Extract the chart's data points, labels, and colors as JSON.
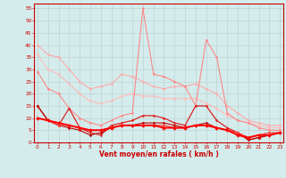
{
  "x": [
    0,
    1,
    2,
    3,
    4,
    5,
    6,
    7,
    8,
    9,
    10,
    11,
    12,
    13,
    14,
    15,
    16,
    17,
    18,
    19,
    20,
    21,
    22,
    23
  ],
  "series": [
    {
      "name": "line1_lightest",
      "color": "#ffaaaa",
      "linewidth": 0.8,
      "marker": "D",
      "markersize": 1.5,
      "values": [
        40,
        36,
        35,
        30,
        25,
        22,
        23,
        24,
        28,
        27,
        25,
        23,
        22,
        23,
        23,
        24,
        22,
        20,
        15,
        12,
        9,
        8,
        7,
        7
      ]
    },
    {
      "name": "line2_light",
      "color": "#ffbbbb",
      "linewidth": 0.8,
      "marker": "D",
      "markersize": 1.5,
      "values": [
        36,
        30,
        28,
        24,
        20,
        17,
        16,
        17,
        19,
        20,
        19,
        19,
        18,
        18,
        18,
        18,
        16,
        14,
        11,
        9,
        8,
        7,
        6,
        6
      ]
    },
    {
      "name": "line3_pink",
      "color": "#ff8888",
      "linewidth": 0.8,
      "marker": "D",
      "markersize": 1.5,
      "values": [
        29,
        22,
        20,
        14,
        10,
        8,
        7,
        9,
        11,
        12,
        55,
        28,
        27,
        25,
        23,
        15,
        42,
        35,
        12,
        9,
        8,
        6,
        5,
        5
      ]
    },
    {
      "name": "line4_red",
      "color": "#dd2222",
      "linewidth": 0.9,
      "marker": "D",
      "markersize": 1.5,
      "values": [
        15,
        9,
        7,
        14,
        6,
        4,
        3,
        7,
        8,
        9,
        11,
        11,
        10,
        8,
        7,
        15,
        15,
        9,
        6,
        4,
        1,
        2,
        3,
        4
      ]
    },
    {
      "name": "line5_darkred",
      "color": "#bb0000",
      "linewidth": 0.8,
      "marker": "D",
      "markersize": 1.5,
      "values": [
        15,
        9,
        7,
        6,
        5,
        3,
        4,
        6,
        7,
        7,
        8,
        8,
        8,
        7,
        6,
        7,
        8,
        6,
        5,
        4,
        1,
        2,
        3,
        4
      ]
    },
    {
      "name": "line6_red2",
      "color": "#ff4444",
      "linewidth": 0.9,
      "marker": "D",
      "markersize": 1.5,
      "values": [
        10,
        9,
        7,
        7,
        6,
        5,
        5,
        6,
        7,
        7,
        7,
        7,
        7,
        6,
        6,
        7,
        7,
        6,
        5,
        4,
        2,
        3,
        4,
        4
      ]
    },
    {
      "name": "line7_bold",
      "color": "#ff0000",
      "linewidth": 1.4,
      "marker": "D",
      "markersize": 2.0,
      "values": [
        10,
        9,
        8,
        7,
        6,
        5,
        5,
        6,
        7,
        7,
        7,
        7,
        6,
        6,
        6,
        7,
        7,
        6,
        5,
        3,
        2,
        3,
        3,
        4
      ]
    }
  ],
  "xlim": [
    -0.3,
    23.3
  ],
  "ylim": [
    0,
    57
  ],
  "yticks": [
    0,
    5,
    10,
    15,
    20,
    25,
    30,
    35,
    40,
    45,
    50,
    55
  ],
  "xticks": [
    0,
    1,
    2,
    3,
    4,
    5,
    6,
    7,
    8,
    9,
    10,
    11,
    12,
    13,
    14,
    15,
    16,
    17,
    18,
    19,
    20,
    21,
    22,
    23
  ],
  "xlabel": "Vent moyen/en rafales ( km/h )",
  "bg_color": "#d4ecec",
  "grid_color": "#bbcccc",
  "label_color": "#cc0000",
  "tick_color": "#cc0000",
  "spine_color": "#cc0000"
}
